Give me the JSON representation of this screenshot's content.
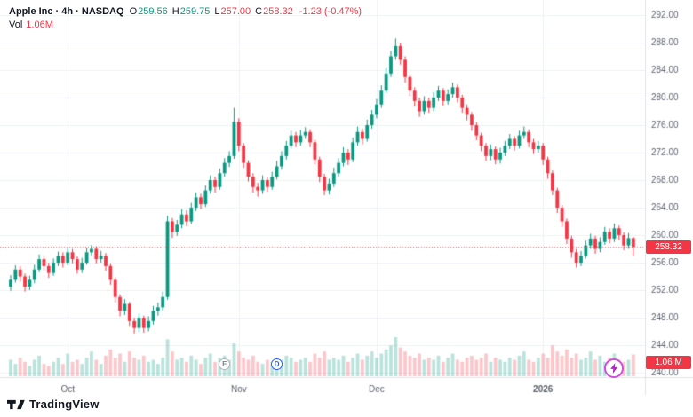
{
  "header": {
    "symbol": "Apple Inc · 4h · NASDAQ",
    "ohlc": [
      {
        "label": "O",
        "value": "259.56",
        "color": "#089981"
      },
      {
        "label": "H",
        "value": "259.75",
        "color": "#089981"
      },
      {
        "label": "L",
        "value": "257.00",
        "color": "#f23645"
      },
      {
        "label": "C",
        "value": "258.32",
        "color": "#f23645"
      }
    ],
    "change": "-1.23 (-0.47%)",
    "change_color": "#f23645",
    "vol_label": "Vol",
    "vol_value": "1.06M",
    "vol_color": "#f23645"
  },
  "badges": {
    "price": "258.32",
    "volume": "1.06 M"
  },
  "markers": [
    {
      "name": "earnings-marker",
      "label": "E",
      "index": 45,
      "color": "#787b86",
      "border": "#b2b5be"
    },
    {
      "name": "dividend-marker",
      "label": "D",
      "index": 56,
      "color": "#2962ff",
      "border": "#2962ff"
    }
  ],
  "footer": {
    "brand": "TradingView"
  },
  "chart_data": {
    "type": "candlestick",
    "title": "Apple Inc · 4h · NASDAQ",
    "ylim": [
      240,
      292
    ],
    "y_step": 4,
    "y_ticks": [
      292,
      288,
      284,
      280,
      276,
      272,
      268,
      264,
      260,
      256,
      252,
      248,
      244,
      240
    ],
    "x_ticks": [
      {
        "label": "Oct",
        "index": 12
      },
      {
        "label": "Nov",
        "index": 48
      },
      {
        "label": "Dec",
        "index": 77
      },
      {
        "label": "2026",
        "index": 112
      }
    ],
    "last_price": 258.32,
    "last_volume_label": "1.06 M",
    "volume_scale_max": 1.9,
    "colors": {
      "up": "#089981",
      "down": "#f23645",
      "vol_up": "rgba(8,153,129,0.28)",
      "vol_down": "rgba(242,54,69,0.28)",
      "grid": "#eef1f6",
      "axis_line": "#e0e3eb",
      "axis_text": "#5d616e",
      "last_line": "rgba(242,54,69,0.8)"
    },
    "candles": [
      [
        252.5,
        254.2,
        251.9,
        253.5
      ],
      [
        253.5,
        255.6,
        253.1,
        255.0
      ],
      [
        255.0,
        255.5,
        253.3,
        254.0
      ],
      [
        254.0,
        254.4,
        251.8,
        252.5
      ],
      [
        252.5,
        254.1,
        252.0,
        253.5
      ],
      [
        253.5,
        255.7,
        253.0,
        255.0
      ],
      [
        255.0,
        257.2,
        254.6,
        256.5
      ],
      [
        256.5,
        257.0,
        254.9,
        255.5
      ],
      [
        255.5,
        256.0,
        253.8,
        254.5
      ],
      [
        254.5,
        256.6,
        254.1,
        256.0
      ],
      [
        256.0,
        257.6,
        255.5,
        257.0
      ],
      [
        257.0,
        257.5,
        255.3,
        256.0
      ],
      [
        256.0,
        258.1,
        255.6,
        257.5
      ],
      [
        257.5,
        258.0,
        255.9,
        256.5
      ],
      [
        256.5,
        256.9,
        254.4,
        255.0
      ],
      [
        255.0,
        256.7,
        254.5,
        256.0
      ],
      [
        256.0,
        258.2,
        255.7,
        257.5
      ],
      [
        257.5,
        258.6,
        257.0,
        258.0
      ],
      [
        258.0,
        258.4,
        255.9,
        256.5
      ],
      [
        256.5,
        257.7,
        256.0,
        257.0
      ],
      [
        257.0,
        257.4,
        254.8,
        255.5
      ],
      [
        255.5,
        255.9,
        252.8,
        253.5
      ],
      [
        253.5,
        253.9,
        250.2,
        251.0
      ],
      [
        251.0,
        251.4,
        248.2,
        249.0
      ],
      [
        249.0,
        250.7,
        248.4,
        250.0
      ],
      [
        250.0,
        250.3,
        246.8,
        247.5
      ],
      [
        247.5,
        248.0,
        245.7,
        246.5
      ],
      [
        246.5,
        248.6,
        245.9,
        248.0
      ],
      [
        248.0,
        248.3,
        245.8,
        246.5
      ],
      [
        246.5,
        248.2,
        246.0,
        247.5
      ],
      [
        247.5,
        249.7,
        247.0,
        249.0
      ],
      [
        249.0,
        250.2,
        248.3,
        249.5
      ],
      [
        249.5,
        251.8,
        249.0,
        251.0
      ],
      [
        251.0,
        262.8,
        250.6,
        262.0
      ],
      [
        262.0,
        262.5,
        259.6,
        260.5
      ],
      [
        260.5,
        262.2,
        259.9,
        261.5
      ],
      [
        261.5,
        263.8,
        261.0,
        263.0
      ],
      [
        263.0,
        263.6,
        261.3,
        262.0
      ],
      [
        262.0,
        264.7,
        261.6,
        264.0
      ],
      [
        264.0,
        266.2,
        263.5,
        265.5
      ],
      [
        265.5,
        266.0,
        263.8,
        264.5
      ],
      [
        264.5,
        267.2,
        264.1,
        266.5
      ],
      [
        266.5,
        268.7,
        266.0,
        268.0
      ],
      [
        268.0,
        268.5,
        266.2,
        267.0
      ],
      [
        267.0,
        269.7,
        266.6,
        269.0
      ],
      [
        269.0,
        271.2,
        268.5,
        270.5
      ],
      [
        270.5,
        272.2,
        269.9,
        271.5
      ],
      [
        271.5,
        278.5,
        271.1,
        276.5
      ],
      [
        276.5,
        277.0,
        272.2,
        273.0
      ],
      [
        273.0,
        273.4,
        269.8,
        270.5
      ],
      [
        270.5,
        270.9,
        267.8,
        268.5
      ],
      [
        268.5,
        269.0,
        266.2,
        267.0
      ],
      [
        267.0,
        267.6,
        265.6,
        266.5
      ],
      [
        266.5,
        268.7,
        266.0,
        268.0
      ],
      [
        268.0,
        268.4,
        266.3,
        267.0
      ],
      [
        267.0,
        269.2,
        266.6,
        268.5
      ],
      [
        268.5,
        270.8,
        268.1,
        270.0
      ],
      [
        270.0,
        272.2,
        269.5,
        271.5
      ],
      [
        271.5,
        273.7,
        271.0,
        273.0
      ],
      [
        273.0,
        275.2,
        272.6,
        274.5
      ],
      [
        274.5,
        275.0,
        272.8,
        273.5
      ],
      [
        273.5,
        275.3,
        273.0,
        274.5
      ],
      [
        274.5,
        275.7,
        274.0,
        275.0
      ],
      [
        275.0,
        275.4,
        272.8,
        273.5
      ],
      [
        273.5,
        273.9,
        270.3,
        271.0
      ],
      [
        271.0,
        271.4,
        267.7,
        268.5
      ],
      [
        268.5,
        268.9,
        265.8,
        266.5
      ],
      [
        266.5,
        268.2,
        265.9,
        267.5
      ],
      [
        267.5,
        269.8,
        267.0,
        269.0
      ],
      [
        269.0,
        271.2,
        268.5,
        270.5
      ],
      [
        270.5,
        272.8,
        270.0,
        272.0
      ],
      [
        272.0,
        272.5,
        270.2,
        271.0
      ],
      [
        271.0,
        274.2,
        270.6,
        273.5
      ],
      [
        273.5,
        275.8,
        273.0,
        275.0
      ],
      [
        275.0,
        275.5,
        273.2,
        274.0
      ],
      [
        274.0,
        276.8,
        273.6,
        276.0
      ],
      [
        276.0,
        278.2,
        275.5,
        277.5
      ],
      [
        277.5,
        279.8,
        277.0,
        279.0
      ],
      [
        279.0,
        281.8,
        278.5,
        281.0
      ],
      [
        281.0,
        284.3,
        280.6,
        283.5
      ],
      [
        283.5,
        286.8,
        283.0,
        286.0
      ],
      [
        286.0,
        288.6,
        285.5,
        287.5
      ],
      [
        287.5,
        288.0,
        284.8,
        285.5
      ],
      [
        285.5,
        286.0,
        282.2,
        283.0
      ],
      [
        283.0,
        283.4,
        280.2,
        281.0
      ],
      [
        281.0,
        281.5,
        278.7,
        279.5
      ],
      [
        279.5,
        280.0,
        277.2,
        278.0
      ],
      [
        278.0,
        280.2,
        277.5,
        279.5
      ],
      [
        279.5,
        280.0,
        277.8,
        278.5
      ],
      [
        278.5,
        280.8,
        278.0,
        280.0
      ],
      [
        280.0,
        281.7,
        279.5,
        281.0
      ],
      [
        281.0,
        281.4,
        278.8,
        279.5
      ],
      [
        279.5,
        281.2,
        279.0,
        280.5
      ],
      [
        280.5,
        282.2,
        280.0,
        281.5
      ],
      [
        281.5,
        281.9,
        279.3,
        280.0
      ],
      [
        280.0,
        280.4,
        277.8,
        278.5
      ],
      [
        278.5,
        279.0,
        276.7,
        277.5
      ],
      [
        277.5,
        277.9,
        275.2,
        276.0
      ],
      [
        276.0,
        276.4,
        273.8,
        274.5
      ],
      [
        274.5,
        274.9,
        272.2,
        273.0
      ],
      [
        273.0,
        273.4,
        270.8,
        271.5
      ],
      [
        271.5,
        273.2,
        270.9,
        272.5
      ],
      [
        272.5,
        272.9,
        270.3,
        271.0
      ],
      [
        271.0,
        272.7,
        270.4,
        272.0
      ],
      [
        272.0,
        273.7,
        271.5,
        273.0
      ],
      [
        273.0,
        274.7,
        272.5,
        274.0
      ],
      [
        274.0,
        274.4,
        272.3,
        273.0
      ],
      [
        273.0,
        275.2,
        272.6,
        274.5
      ],
      [
        274.5,
        275.8,
        274.0,
        275.0
      ],
      [
        275.0,
        275.4,
        272.8,
        273.5
      ],
      [
        273.5,
        274.0,
        271.8,
        272.5
      ],
      [
        272.5,
        273.7,
        272.0,
        273.0
      ],
      [
        273.0,
        273.4,
        270.2,
        271.0
      ],
      [
        271.0,
        271.4,
        268.2,
        269.0
      ],
      [
        269.0,
        269.4,
        265.8,
        266.5
      ],
      [
        266.5,
        266.9,
        263.2,
        264.0
      ],
      [
        264.0,
        264.4,
        261.2,
        262.0
      ],
      [
        262.0,
        262.4,
        258.7,
        259.5
      ],
      [
        259.5,
        259.9,
        256.7,
        257.5
      ],
      [
        257.5,
        258.0,
        255.3,
        256.0
      ],
      [
        256.0,
        257.7,
        255.5,
        257.0
      ],
      [
        257.0,
        259.2,
        256.6,
        258.5
      ],
      [
        258.5,
        260.2,
        258.0,
        259.5
      ],
      [
        259.5,
        259.9,
        257.3,
        258.0
      ],
      [
        258.0,
        259.7,
        257.5,
        259.0
      ],
      [
        259.0,
        261.2,
        258.6,
        260.5
      ],
      [
        260.5,
        261.0,
        258.8,
        259.5
      ],
      [
        259.5,
        261.7,
        259.0,
        261.0
      ],
      [
        261.0,
        261.4,
        259.3,
        260.0
      ],
      [
        260.0,
        260.4,
        257.8,
        258.5
      ],
      [
        258.5,
        260.3,
        258.0,
        259.56
      ],
      [
        259.56,
        259.75,
        257.0,
        258.32
      ]
    ],
    "volumes": [
      0.8,
      0.6,
      0.9,
      0.7,
      0.5,
      0.8,
      1.0,
      0.6,
      0.5,
      0.7,
      0.9,
      0.6,
      1.1,
      0.7,
      0.8,
      0.6,
      0.9,
      1.2,
      0.8,
      0.6,
      1.0,
      1.3,
      0.9,
      1.1,
      0.7,
      1.2,
      0.9,
      0.8,
      1.0,
      0.7,
      0.8,
      0.6,
      0.9,
      1.8,
      1.2,
      0.8,
      0.9,
      0.7,
      1.0,
      0.8,
      0.6,
      0.9,
      1.1,
      0.7,
      0.9,
      1.0,
      0.8,
      1.6,
      1.2,
      0.9,
      0.8,
      1.0,
      0.7,
      0.6,
      0.8,
      0.7,
      0.9,
      0.8,
      1.0,
      0.9,
      0.7,
      0.8,
      0.9,
      0.7,
      1.1,
      0.9,
      1.2,
      0.8,
      0.9,
      0.8,
      1.0,
      0.7,
      0.9,
      1.1,
      0.8,
      1.0,
      1.2,
      0.9,
      1.1,
      1.3,
      1.5,
      1.9,
      1.4,
      1.2,
      1.0,
      0.9,
      1.1,
      0.8,
      0.9,
      0.8,
      1.0,
      0.7,
      0.9,
      1.1,
      0.8,
      0.7,
      0.9,
      1.0,
      0.8,
      0.9,
      1.1,
      0.7,
      0.9,
      0.8,
      0.7,
      0.9,
      0.8,
      1.0,
      1.2,
      0.8,
      0.7,
      0.9,
      1.1,
      0.9,
      1.5,
      1.2,
      1.0,
      1.3,
      0.9,
      1.1,
      0.8,
      0.9,
      1.2,
      0.8,
      1.0,
      0.7,
      0.9,
      1.1,
      0.8,
      0.7,
      0.8,
      1.06
    ]
  }
}
